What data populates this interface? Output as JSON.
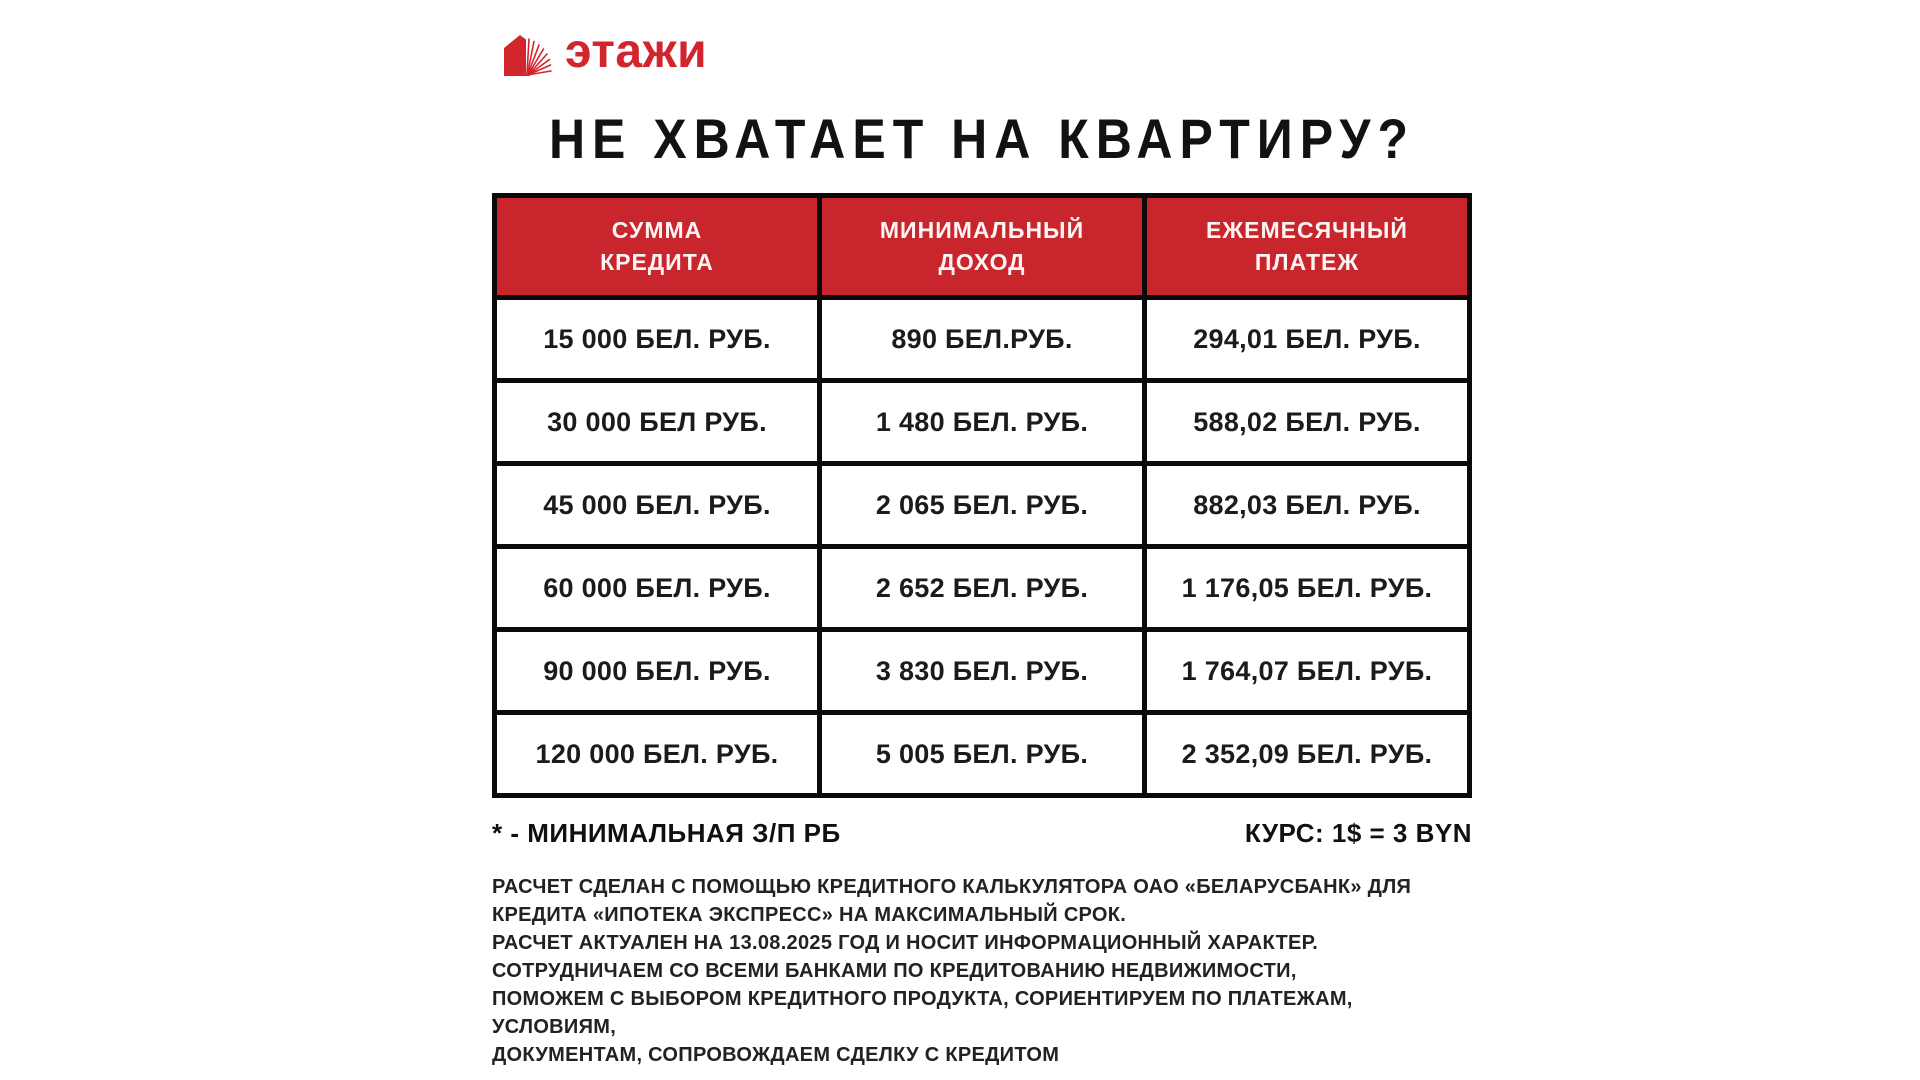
{
  "page": {
    "background": "#ffffff"
  },
  "logo": {
    "brand_name": "этажи",
    "color": "#d2252d",
    "icon": "etazhi-house-icon"
  },
  "headline": "НЕ ХВАТАЕТ НА КВАРТИРУ?",
  "table": {
    "header_bg": "#c9252c",
    "header_text_color": "#ffffff",
    "border_color": "#0a0a0a",
    "columns": [
      "СУММА\nКРЕДИТА",
      "МИНИМАЛЬНЫЙ\nДОХОД",
      "ЕЖЕМЕСЯЧНЫЙ\nПЛАТЕЖ"
    ],
    "rows": [
      [
        "15 000 БЕЛ. РУБ.",
        "890 БЕЛ.РУБ.",
        "294,01 БЕЛ. РУБ."
      ],
      [
        "30 000 БЕЛ РУБ.",
        "1 480 БЕЛ. РУБ.",
        "588,02 БЕЛ. РУБ."
      ],
      [
        "45 000 БЕЛ. РУБ.",
        "2 065 БЕЛ. РУБ.",
        "882,03 БЕЛ. РУБ."
      ],
      [
        "60 000 БЕЛ. РУБ.",
        "2 652 БЕЛ. РУБ.",
        "1 176,05 БЕЛ. РУБ."
      ],
      [
        "90 000 БЕЛ. РУБ.",
        "3 830 БЕЛ. РУБ.",
        "1 764,07 БЕЛ. РУБ."
      ],
      [
        "120 000 БЕЛ. РУБ.",
        "5 005 БЕЛ. РУБ.",
        "2 352,09 БЕЛ. РУБ."
      ]
    ]
  },
  "footnotes": {
    "left": "* - МИНИМАЛЬНАЯ З/П РБ",
    "right": "КУРС: 1$ = 3 BYN"
  },
  "disclaimer": {
    "lines": [
      "РАСЧЕТ СДЕЛАН С ПОМОЩЬЮ КРЕДИТНОГО КАЛЬКУЛЯТОРА ОАО «БЕЛАРУСБАНК» ДЛЯ",
      "КРЕДИТА «ИПОТЕКА ЭКСПРЕСС» НА МАКСИМАЛЬНЫЙ СРОК.",
      "РАСЧЕТ АКТУАЛЕН НА 13.08.2025 ГОД И НОСИТ ИНФОРМАЦИОННЫЙ ХАРАКТЕР.",
      "СОТРУДНИЧАЕМ СО ВСЕМИ БАНКАМИ ПО КРЕДИТОВАНИЮ НЕДВИЖИМОСТИ,",
      "ПОМОЖЕМ С ВЫБОРОМ КРЕДИТНОГО ПРОДУКТА, СОРИЕНТИРУЕМ ПО ПЛАТЕЖАМ,",
      "УСЛОВИЯМ,",
      "ДОКУМЕНТАМ, СОПРОВОЖДАЕМ СДЕЛКУ С КРЕДИТОМ"
    ]
  },
  "chart_data": {
    "type": "table",
    "title": "НЕ ХВАТАЕТ НА КВАРТИРУ?",
    "columns": [
      "СУММА КРЕДИТА",
      "МИНИМАЛЬНЫЙ ДОХОД",
      "ЕЖЕМЕСЯЧНЫЙ ПЛАТЕЖ"
    ],
    "rows_numeric_byn": [
      {
        "credit": 15000,
        "min_income": 890,
        "monthly_payment": 294.01
      },
      {
        "credit": 30000,
        "min_income": 1480,
        "monthly_payment": 588.02
      },
      {
        "credit": 45000,
        "min_income": 2065,
        "monthly_payment": 882.03
      },
      {
        "credit": 60000,
        "min_income": 2652,
        "monthly_payment": 1176.05
      },
      {
        "credit": 90000,
        "min_income": 3830,
        "monthly_payment": 1764.07
      },
      {
        "credit": 120000,
        "min_income": 5005,
        "monthly_payment": 2352.09
      }
    ],
    "exchange_rate": "1$ = 3 BYN"
  }
}
